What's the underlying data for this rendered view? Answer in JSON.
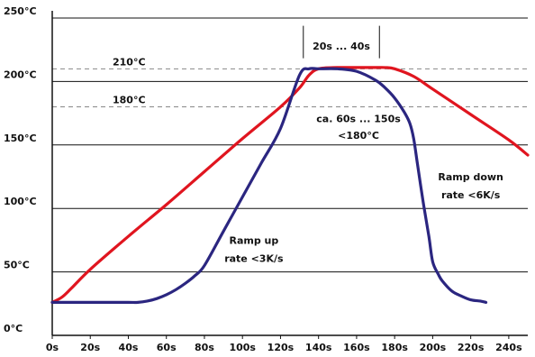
{
  "chart_data": {
    "type": "line",
    "title": "",
    "xlabel": "",
    "ylabel": "",
    "xlim": [
      0,
      250
    ],
    "ylim": [
      0,
      250
    ],
    "grid": {
      "horizontal": true,
      "vertical": false
    },
    "x_ticks": [
      0,
      20,
      40,
      60,
      80,
      100,
      120,
      140,
      160,
      180,
      200,
      220,
      240
    ],
    "x_tick_labels": [
      "0s",
      "20s",
      "40s",
      "60s",
      "80s",
      "100s",
      "120s",
      "140s",
      "160s",
      "180s",
      "200s",
      "220s",
      "240s"
    ],
    "y_ticks": [
      0,
      50,
      100,
      150,
      200,
      250
    ],
    "y_tick_labels": [
      "0°C",
      "50°C",
      "100°C",
      "150°C",
      "200°C",
      "250°C"
    ],
    "reference_lines": [
      {
        "y": 210,
        "label": "210°C",
        "style": "dashed"
      },
      {
        "y": 180,
        "label": "180°C",
        "style": "dashed"
      }
    ],
    "series": [
      {
        "color": "#e0151f",
        "x": [
          0,
          5,
          10,
          20,
          40,
          60,
          80,
          100,
          120,
          130,
          135,
          140,
          150,
          160,
          170,
          175,
          180,
          190,
          200,
          220,
          240,
          250
        ],
        "y": [
          26,
          30,
          37,
          52,
          78,
          103,
          129,
          155,
          180,
          195,
          205,
          210,
          211,
          211,
          211,
          211,
          210,
          204,
          194,
          174,
          154,
          142
        ]
      },
      {
        "color": "#2b2680",
        "x": [
          0,
          10,
          20,
          30,
          40,
          45,
          50,
          55,
          60,
          65,
          70,
          75,
          80,
          90,
          100,
          110,
          120,
          130,
          135,
          140,
          150,
          160,
          170,
          175,
          180,
          185,
          188,
          190,
          192,
          195,
          198,
          200,
          203,
          205,
          210,
          215,
          220,
          225,
          228
        ],
        "y": [
          26,
          26,
          26,
          26,
          26,
          26,
          27,
          29,
          32,
          36,
          41,
          47,
          55,
          82,
          109,
          136,
          163,
          205,
          210,
          210,
          210,
          208,
          201,
          195,
          187,
          176,
          167,
          155,
          135,
          105,
          78,
          58,
          48,
          43,
          35,
          31,
          28,
          27,
          26
        ]
      }
    ],
    "annotations": [
      {
        "text": "20s ... 40s",
        "x": 152,
        "y": 225
      },
      {
        "text": "ca. 60s ... 150s",
        "x": 161,
        "y": 168
      },
      {
        "text": "<180°C",
        "x": 161,
        "y": 155
      },
      {
        "text": "Ramp down",
        "x": 220,
        "y": 122
      },
      {
        "text": "rate <6K/s",
        "x": 220,
        "y": 108
      },
      {
        "text": "Ramp up",
        "x": 106,
        "y": 72
      },
      {
        "text": "rate <3K/s",
        "x": 106,
        "y": 58
      }
    ],
    "bracket": {
      "x_start": 132,
      "x_end": 172,
      "y": 224,
      "color": "#111111"
    }
  }
}
